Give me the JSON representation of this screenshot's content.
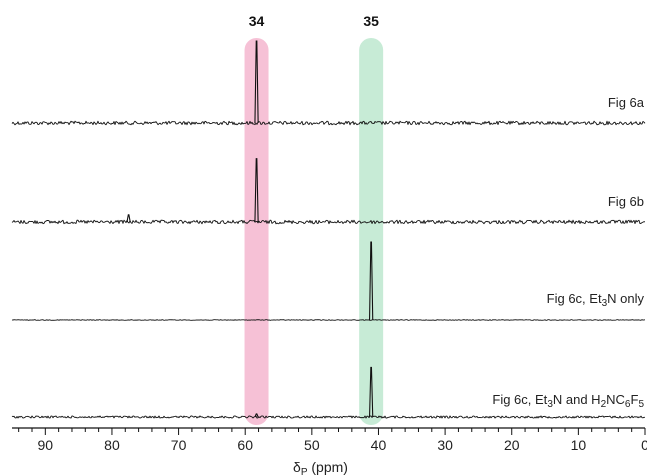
{
  "chart_data": {
    "type": "line",
    "title": "",
    "xlabel": "δP (ppm)",
    "ylabel": "",
    "xlim": [
      95,
      0
    ],
    "x_reversed": true,
    "x_ticks": [
      90,
      80,
      70,
      60,
      50,
      40,
      30,
      20,
      10,
      0
    ],
    "x_minor_step": 2,
    "grid": false,
    "highlight_bands": [
      {
        "label": "34",
        "center": 58.3,
        "color": "#f4b6cf"
      },
      {
        "label": "35",
        "center": 41.1,
        "color": "#bde7cf"
      }
    ],
    "series": [
      {
        "name": "Fig 6a",
        "noise": "high",
        "peaks": [
          {
            "x": 58.3,
            "height": 1.0
          }
        ]
      },
      {
        "name": "Fig 6b",
        "noise": "high",
        "peaks": [
          {
            "x": 58.3,
            "height": 0.88
          },
          {
            "x": 77.5,
            "height": 0.1
          }
        ]
      },
      {
        "name": "Fig 6c, Et3N only",
        "label_parts": [
          {
            "t": "Fig 6c, Et"
          },
          {
            "t": "3",
            "sub": true
          },
          {
            "t": "N only"
          }
        ],
        "noise": "low",
        "peaks": [
          {
            "x": 41.1,
            "height": 1.0
          }
        ]
      },
      {
        "name": "Fig 6c, Et3N and H2NC6F5",
        "label_parts": [
          {
            "t": "Fig 6c, Et"
          },
          {
            "t": "3",
            "sub": true
          },
          {
            "t": "N and H"
          },
          {
            "t": "2",
            "sub": true
          },
          {
            "t": "NC"
          },
          {
            "t": "6",
            "sub": true
          },
          {
            "t": "F"
          },
          {
            "t": "5",
            "sub": true
          }
        ],
        "noise": "medium",
        "peaks": [
          {
            "x": 41.1,
            "height": 0.8
          },
          {
            "x": 58.3,
            "height": 0.05
          }
        ]
      }
    ]
  }
}
